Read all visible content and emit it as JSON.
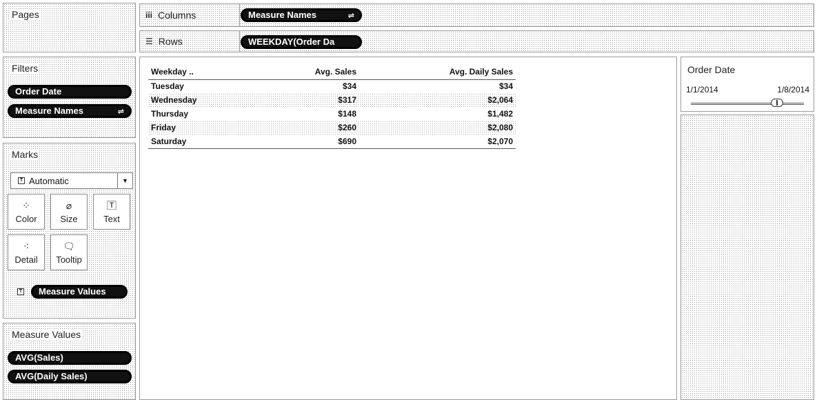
{
  "pages": {
    "title": "Pages"
  },
  "columns": {
    "label": "Columns",
    "pill": "Measure Names"
  },
  "rows": {
    "label": "Rows",
    "pill": "WEEKDAY(Order Da"
  },
  "filters": {
    "title": "Filters",
    "pills": [
      "Order Date",
      "Measure Names"
    ]
  },
  "marks": {
    "title": "Marks",
    "type": "Automatic",
    "buttons": {
      "color": "Color",
      "size": "Size",
      "text": "Text",
      "detail": "Detail",
      "tooltip": "Tooltip"
    },
    "field_pill": "Measure Values"
  },
  "measure_values": {
    "title": "Measure Values",
    "pills": [
      "AVG(Sales)",
      "AVG(Daily Sales)"
    ]
  },
  "table": {
    "headers": [
      "Weekday ..",
      "Avg. Sales",
      "Avg. Daily Sales"
    ],
    "rows": [
      [
        "Tuesday",
        "$34",
        "$34"
      ],
      [
        "Wednesday",
        "$317",
        "$2,064"
      ],
      [
        "Thursday",
        "$148",
        "$1,482"
      ],
      [
        "Friday",
        "$260",
        "$2,080"
      ],
      [
        "Saturday",
        "$690",
        "$2,070"
      ]
    ]
  },
  "order_date_filter": {
    "title": "Order Date",
    "start": "1/1/2014",
    "end": "1/8/2014",
    "slider_level": 0.76
  }
}
